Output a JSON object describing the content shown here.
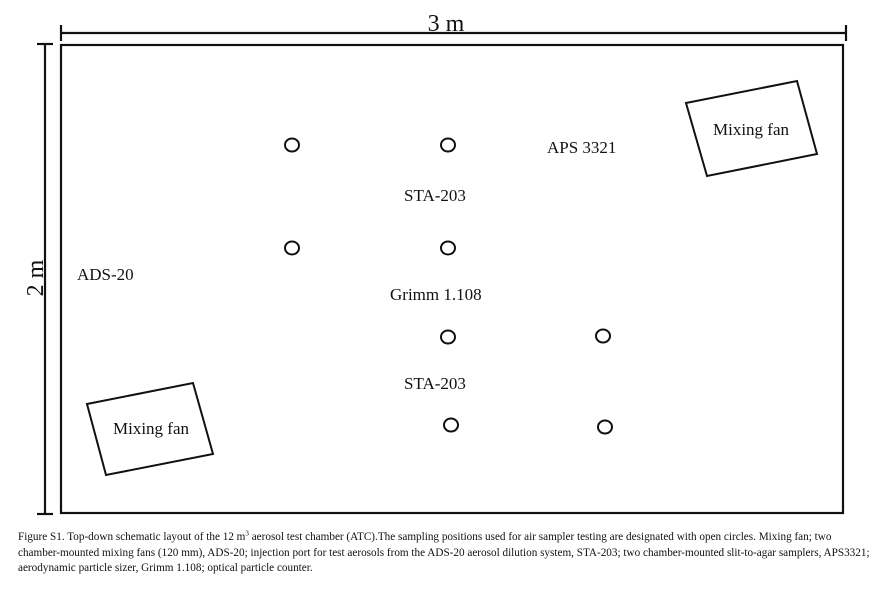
{
  "dimensions": {
    "width_label": "3 m",
    "height_label": "2 m"
  },
  "labels": {
    "aps": "APS 3321",
    "sta_top": "STA-203",
    "ads": "ADS-20",
    "grimm": "Grimm 1.108",
    "sta_bottom": "STA-203"
  },
  "fans": {
    "top_right": "Mixing fan",
    "bottom_left": "Mixing fan"
  },
  "caption": {
    "part1": "Figure S1. Top-down schematic layout of the 12 m",
    "sup": "3",
    "part2": " aerosol test chamber (ATC).The sampling positions used for air sampler testing are designated with open circles. Mixing fan; two chamber-mounted mixing fans (120 mm), ADS-20; injection port for test aerosols from the ADS-20 aerosol dilution system, STA-203; two chamber-mounted slit-to-agar samplers, APS3321; aerodynamic particle sizer, Grimm 1.108; optical particle counter."
  }
}
